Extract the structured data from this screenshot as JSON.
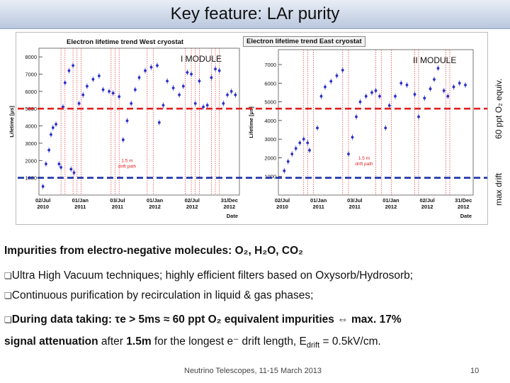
{
  "slide": {
    "title": "Key feature: LAr purity",
    "footer": "Neutrino Telescopes, 11-15 March 2013",
    "page_number": "10"
  },
  "figure": {
    "west_title": "Electron lifetime trend West cryostat",
    "east_title": "Electron lifetime trend East cryostat",
    "west_module": "I MODULE",
    "east_module": "II MODULE",
    "ylabel": "Lifetime [μs]",
    "xlabel": "Date",
    "line_60ppt_label": "60 ppt O₂ equiv.",
    "line_maxdrift_label": "max drift",
    "drift_path_text": "1.5 m drift path",
    "colors": {
      "points": "#2b2fc9",
      "red_line": "#e02020",
      "blue_line": "#1a2fa8"
    }
  },
  "text": {
    "heading": "Impurities from electro-negative molecules: O₂, H₂O, CO₂",
    "bullet1": "Ultra High Vacuum techniques; highly efficient filters based on Oxysorb/Hydrosorb;",
    "bullet2": "Continuous purification by recirculation in liquid & gas phases;",
    "bullet3a": "During data taking: τe > 5ms ≈ 60 ppt O₂ equivalent impurities ⇔ max. 17%",
    "bullet3b_bold": "signal attenuation",
    "bullet3b_1": " after ",
    "bullet3b_bold2": "1.5m",
    "bullet3b_2": " for the longest e⁻ drift length,  E",
    "bullet3b_sub": "drift",
    "bullet3b_3": " = 0.5kV/cm."
  },
  "chart_data": [
    {
      "type": "scatter",
      "title": "Electron lifetime trend West cryostat",
      "module": "I MODULE",
      "xlabel": "Date",
      "ylabel": "Lifetime [μs]",
      "x_tick_labels": [
        "02/Jul 2010",
        "01/Jan 2011",
        "03/Jul 2011",
        "01/Jan 2012",
        "02/Jul 2012",
        "31/Dec 2012"
      ],
      "ylim": [
        0,
        8500
      ],
      "y_ticks": [
        1000,
        2000,
        3000,
        4000,
        5000,
        6000,
        7000,
        8000
      ],
      "reference_lines": [
        {
          "name": "60 ppt O2 equiv.",
          "value": 5000,
          "style": "red dashed"
        },
        {
          "name": "max drift",
          "value": 1000,
          "style": "blue dashed"
        }
      ],
      "annotation": "1.5 m drift path",
      "series": [
        {
          "name": "electron lifetime",
          "points": [
            [
              0.02,
              500
            ],
            [
              0.035,
              1800
            ],
            [
              0.05,
              2600
            ],
            [
              0.06,
              3500
            ],
            [
              0.07,
              3900
            ],
            [
              0.085,
              4100
            ],
            [
              0.1,
              1800
            ],
            [
              0.11,
              1600
            ],
            [
              0.12,
              5100
            ],
            [
              0.13,
              6500
            ],
            [
              0.15,
              7200
            ],
            [
              0.17,
              7500
            ],
            [
              0.16,
              1500
            ],
            [
              0.175,
              1300
            ],
            [
              0.2,
              5300
            ],
            [
              0.22,
              5800
            ],
            [
              0.24,
              6300
            ],
            [
              0.27,
              6700
            ],
            [
              0.3,
              6900
            ],
            [
              0.32,
              6100
            ],
            [
              0.35,
              6000
            ],
            [
              0.37,
              5900
            ],
            [
              0.4,
              5700
            ],
            [
              0.42,
              3200
            ],
            [
              0.44,
              4300
            ],
            [
              0.46,
              5300
            ],
            [
              0.48,
              6100
            ],
            [
              0.5,
              6800
            ],
            [
              0.53,
              7200
            ],
            [
              0.56,
              7400
            ],
            [
              0.59,
              7500
            ],
            [
              0.6,
              4200
            ],
            [
              0.62,
              5200
            ],
            [
              0.64,
              6600
            ],
            [
              0.67,
              6200
            ],
            [
              0.7,
              5800
            ],
            [
              0.72,
              6300
            ],
            [
              0.74,
              7100
            ],
            [
              0.76,
              7000
            ],
            [
              0.78,
              5300
            ],
            [
              0.8,
              6600
            ],
            [
              0.82,
              5100
            ],
            [
              0.84,
              5200
            ],
            [
              0.86,
              6800
            ],
            [
              0.88,
              7300
            ],
            [
              0.9,
              7200
            ],
            [
              0.92,
              5300
            ],
            [
              0.94,
              5800
            ],
            [
              0.96,
              6000
            ],
            [
              0.98,
              5800
            ]
          ]
        }
      ]
    },
    {
      "type": "scatter",
      "title": "Electron lifetime trend East cryostat",
      "module": "II MODULE",
      "xlabel": "Date",
      "ylabel": "Lifetime [μs]",
      "x_tick_labels": [
        "02/Jul 2010",
        "01/Jan 2011",
        "03/Jul 2011",
        "01/Jan 2012",
        "02/Jul 2012",
        "31/Dec 2012"
      ],
      "ylim": [
        0,
        7800
      ],
      "y_ticks": [
        1000,
        2000,
        3000,
        4000,
        5000,
        6000,
        7000
      ],
      "reference_lines": [
        {
          "name": "60 ppt O2 equiv.",
          "value": 5000,
          "style": "red dashed"
        },
        {
          "name": "max drift",
          "value": 1000,
          "style": "blue dashed"
        }
      ],
      "annotation": "1.5 m drift path",
      "series": [
        {
          "name": "electron lifetime",
          "points": [
            [
              0.03,
              1300
            ],
            [
              0.05,
              1800
            ],
            [
              0.07,
              2200
            ],
            [
              0.09,
              2500
            ],
            [
              0.11,
              2800
            ],
            [
              0.13,
              3000
            ],
            [
              0.15,
              2800
            ],
            [
              0.16,
              2400
            ],
            [
              0.2,
              3600
            ],
            [
              0.22,
              5300
            ],
            [
              0.24,
              5800
            ],
            [
              0.27,
              6100
            ],
            [
              0.3,
              6400
            ],
            [
              0.33,
              6700
            ],
            [
              0.36,
              2200
            ],
            [
              0.38,
              3100
            ],
            [
              0.4,
              4200
            ],
            [
              0.42,
              5000
            ],
            [
              0.45,
              5300
            ],
            [
              0.48,
              5500
            ],
            [
              0.5,
              5600
            ],
            [
              0.52,
              5300
            ],
            [
              0.55,
              3600
            ],
            [
              0.57,
              4800
            ],
            [
              0.6,
              5300
            ],
            [
              0.63,
              6000
            ],
            [
              0.66,
              5900
            ],
            [
              0.7,
              5400
            ],
            [
              0.72,
              4200
            ],
            [
              0.75,
              5200
            ],
            [
              0.78,
              5700
            ],
            [
              0.8,
              6200
            ],
            [
              0.82,
              6800
            ],
            [
              0.85,
              5600
            ],
            [
              0.87,
              5300
            ],
            [
              0.9,
              5800
            ],
            [
              0.93,
              6000
            ],
            [
              0.96,
              5900
            ]
          ]
        }
      ]
    }
  ]
}
